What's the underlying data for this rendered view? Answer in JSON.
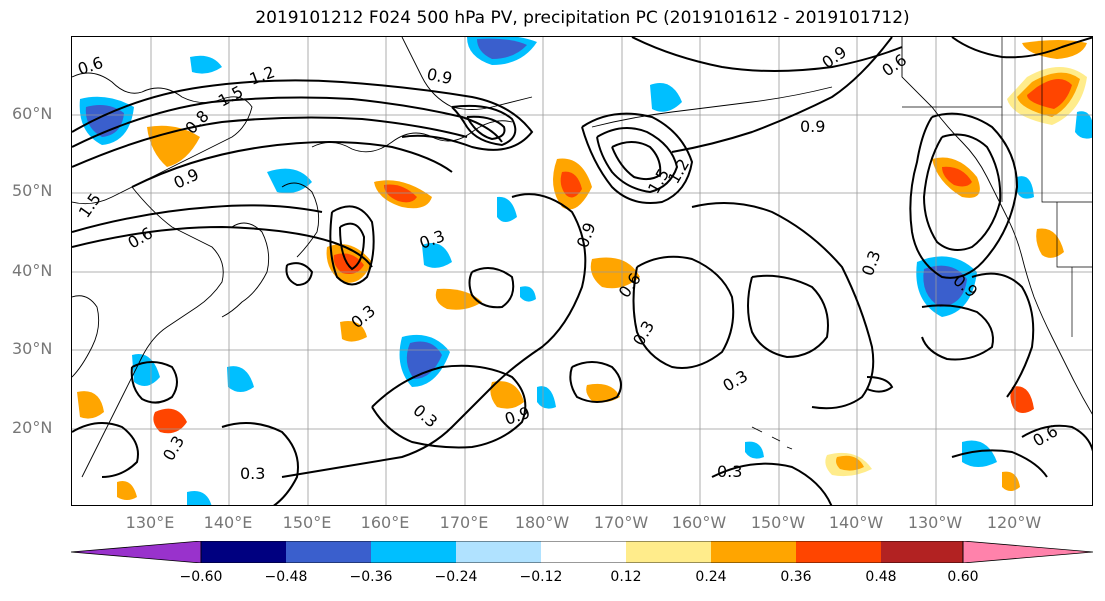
{
  "title": "2019101212 F024 500 hPa PV, precipitation PC (2019101612 - 2019101712)",
  "lat_labels": [
    "60°N",
    "50°N",
    "40°N",
    "30°N",
    "20°N"
  ],
  "lon_labels": [
    "130°E",
    "140°E",
    "150°E",
    "160°E",
    "170°E",
    "180°W",
    "170°W",
    "160°W",
    "150°W",
    "140°W",
    "130°W",
    "120°W"
  ],
  "colorbar": {
    "ticks": [
      "−0.60",
      "−0.48",
      "−0.36",
      "−0.24",
      "−0.12",
      "0.12",
      "0.24",
      "0.36",
      "0.48",
      "0.60"
    ],
    "colors": [
      "#9932cc",
      "#000080",
      "#3a5fcd",
      "#00bfff",
      "#b0e2ff",
      "#ffffff",
      "#ffec8b",
      "#ffa500",
      "#ff4500",
      "#b22222",
      "#ff82ab"
    ]
  },
  "contour_labels": [
    "0.6",
    "1.5",
    "1.2",
    "0.9",
    "0.8",
    "1.5",
    "0.9",
    "0.6",
    "0.3",
    "0.3",
    "0.3",
    "0.9",
    "0.6",
    "0.3",
    "0.9",
    "1.2",
    "1.5",
    "0.9",
    "0.3",
    "0.9",
    "0.6",
    "0.3",
    "0.3",
    "0.3",
    "0.6",
    "0.9",
    "0.3"
  ],
  "fill_colors": {
    "pos1": "#ffec8b",
    "pos2": "#ffa500",
    "pos3": "#ff4500",
    "neg1": "#b0e2ff",
    "neg2": "#00bfff",
    "neg3": "#3a5fcd"
  }
}
